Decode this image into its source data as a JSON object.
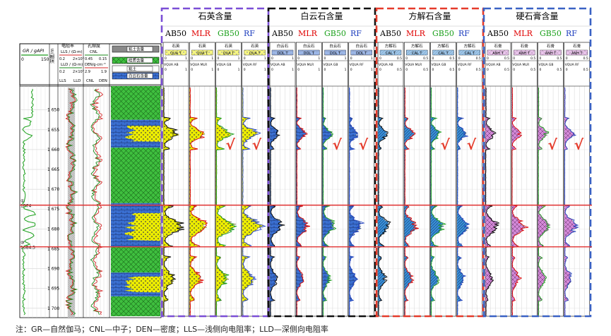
{
  "groups": [
    {
      "title": "石英含量",
      "color": "#7b4fd6",
      "methods": [
        "AB50",
        "MLR",
        "GB50",
        "RF"
      ],
      "track_label": "石英",
      "curve": "QUA",
      "vcurve": "VQUA",
      "min": "0",
      "max": "1",
      "fill": "#ecec00",
      "pattern": "dots"
    },
    {
      "title": "白云石含量",
      "color": "#111111",
      "methods": [
        "AB50",
        "MLR",
        "GB50",
        "RF"
      ],
      "track_label": "白云石",
      "curve": "DOL",
      "vcurve": "VQUA",
      "min": "0",
      "max": "1",
      "fill": "#3a6fd1",
      "pattern": "brick"
    },
    {
      "title": "方解石含量",
      "color": "#e53b2b",
      "methods": [
        "AB50",
        "MLR",
        "GB50",
        "RF"
      ],
      "track_label": "方解石",
      "curve": "CAL",
      "vcurve": "VQUA",
      "min": "0",
      "max": "0.5",
      "fill": "#3a8fd8",
      "pattern": "lines"
    },
    {
      "title": "硬石膏含量",
      "color": "#3a62c4",
      "methods": [
        "AB50",
        "MLR",
        "GB50",
        "RF"
      ],
      "track_label": "石膏",
      "curve": "ANH",
      "vcurve": "VQUA",
      "min": "0",
      "max": "0.5",
      "fill": "#d58ad9",
      "pattern": "cross"
    }
  ],
  "method_colors": {
    "AB50": "#000000",
    "MLR": "#e00000",
    "GB50": "#1aa01a",
    "RF": "#1f3fbf"
  },
  "left_header": {
    "gr_label": "GR / gAPI",
    "gr_min": "0",
    "gr_max": "150",
    "depth_label": "深度/m",
    "res_title": "电阻率",
    "por_title": "孔隙度",
    "lls_label": "LLS / (Ω·m)",
    "cnl_label": "CNL",
    "lls_min": "0.2",
    "lls_max": "2×10³",
    "cnl_min": "0.45",
    "cnl_max": "0.15",
    "lld_label": "LLD / (Ω·m)",
    "den_label": "DEN/g·cm⁻³",
    "lld_min": "0.2",
    "lld_max": "2×10³",
    "den_min": "2.9",
    "den_max": "1.9",
    "lls_legend": "LLS",
    "lld_legend": "LLD",
    "cnl_legend": "CNL",
    "den_legend": "DEN",
    "legend_clay": "粘土含量",
    "legend_quartz": "硅质含量",
    "legend_clay2": "粘土",
    "legend_dol": "白云石含量"
  },
  "depth_ticks": [
    "1 650",
    "1 655",
    "1 660",
    "1 665",
    "1 670",
    "1 675",
    "1 680",
    "1 685",
    "1 690",
    "1 695",
    "1 700"
  ],
  "zone_labels": [
    "1674",
    "1684.5"
  ],
  "zone_codes": [
    "①",
    "⑩"
  ],
  "checkmark": "√",
  "footnote": "注：GR—自然伽马；CNL—中子；DEN—密度；LLS—浅侧向电阻率；LLD—深侧向电阻率"
}
